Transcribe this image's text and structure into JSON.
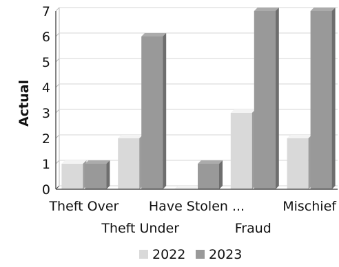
{
  "chart_data": {
    "type": "bar",
    "categories": [
      "Theft Over",
      "Theft Under",
      "Have Stolen ...",
      "Fraud",
      "Mischief"
    ],
    "series": [
      {
        "name": "2022",
        "values": [
          1,
          2,
          0,
          3,
          2
        ],
        "color": "#d9d9d9"
      },
      {
        "name": "2023",
        "values": [
          1,
          6,
          1,
          7,
          7
        ],
        "color": "#999999"
      }
    ],
    "ylabel": "Actual",
    "ylim": [
      0,
      7
    ],
    "yticks": [
      "0",
      "1",
      "2",
      "3",
      "4",
      "5",
      "6",
      "7"
    ],
    "grid": true,
    "legend_position": "bottom",
    "style": "3d"
  }
}
